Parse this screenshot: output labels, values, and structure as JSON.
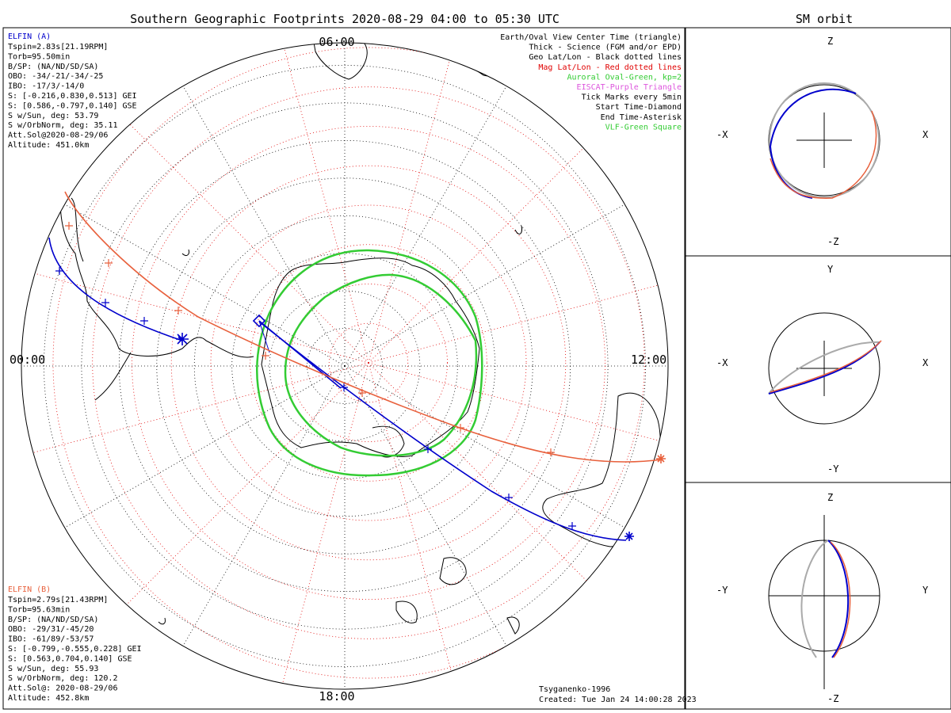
{
  "main_title": "Southern Geographic Footprints 2020-08-29 04:00 to 05:30 UTC",
  "side_title": "SM orbit",
  "time_labels": {
    "top": "06:00",
    "left": "00:00",
    "right": "12:00",
    "bottom": "18:00"
  },
  "legend": [
    {
      "text": "Earth/Oval View Center Time (triangle)",
      "color": "#000000"
    },
    {
      "text": "Thick - Science (FGM and/or EPD)",
      "color": "#000000"
    },
    {
      "text": "Geo Lat/Lon - Black dotted lines",
      "color": "#000000"
    },
    {
      "text": "Mag Lat/Lon - Red dotted lines",
      "color": "#e00000"
    },
    {
      "text": "Auroral Oval-Green, kp=2",
      "color": "#33cc33"
    },
    {
      "text": "EISCAT-Purple Triangle",
      "color": "#dd55dd"
    },
    {
      "text": "Tick Marks every 5min",
      "color": "#000000"
    },
    {
      "text": "Start Time-Diamond",
      "color": "#000000"
    },
    {
      "text": "End Time-Asterisk",
      "color": "#000000"
    },
    {
      "text": "VLF-Green Square",
      "color": "#33cc33"
    }
  ],
  "elfin_a": {
    "title": "ELFIN (A)",
    "color": "#0000cc",
    "lines": [
      "Tspin=2.83s[21.19RPM]",
      "Torb=95.50min",
      "B/SP: (NA/ND/SD/SA)",
      "OBO: -34/-21/-34/-25",
      "IBO: -17/3/-14/0",
      "S: [-0.216,0.830,0.513] GEI",
      "S: [0.586,-0.797,0.140] GSE",
      "S w/Sun, deg: 53.79",
      "S w/OrbNorm, deg: 35.11",
      "Att.Sol@2020-08-29/06",
      "Altitude: 451.0km"
    ]
  },
  "elfin_b": {
    "title": "ELFIN (B)",
    "color": "#e8603c",
    "lines": [
      "Tspin=2.79s[21.43RPM]",
      "Torb=95.63min",
      "B/SP: (NA/ND/SD/SA)",
      "OBO: -29/31/-45/20",
      "IBO: -61/89/-53/57",
      "S: [-0.799,-0.555,0.228] GEI",
      "S: [0.563,0.704,0.140] GSE",
      "S w/Sun, deg: 55.93",
      "S w/OrbNorm, deg: 120.2",
      "Att.Sol@: 2020-08-29/06",
      "Altitude: 452.8km"
    ]
  },
  "footer": {
    "model": "Tsyganenko-1996",
    "created": "Created: Tue Jan 24 14:00:28 2023"
  },
  "panels": [
    {
      "top": "Z",
      "bottom": "-Z",
      "left": "-X",
      "right": "X"
    },
    {
      "top": "Y",
      "bottom": "-Y",
      "left": "-X",
      "right": "X"
    },
    {
      "top": "Z",
      "bottom": "-Z",
      "left": "-Y",
      "right": "Y"
    }
  ],
  "colors": {
    "elfin_a": "#0000cc",
    "elfin_b": "#e8603c",
    "oval": "#33cc33",
    "mag_grid": "#e00000",
    "geo_grid": "#000000"
  }
}
